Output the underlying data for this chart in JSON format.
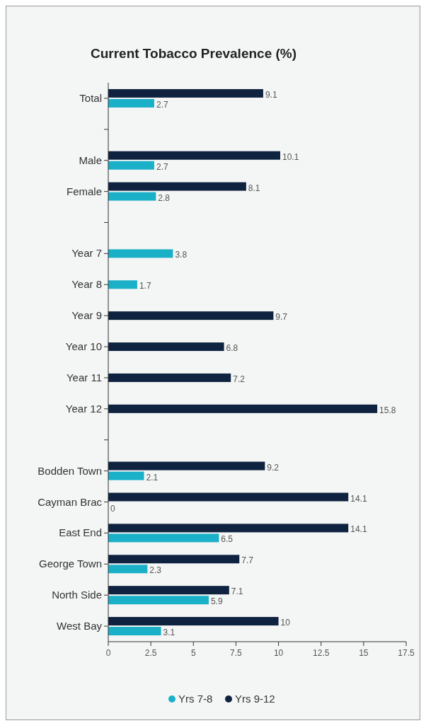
{
  "chart_data": {
    "type": "bar",
    "orientation": "horizontal",
    "title": "Current Tobacco Prevalence (%)",
    "categories": [
      "Total",
      null,
      "Male",
      "Female",
      null,
      "Year 7",
      "Year 8",
      "Year 9",
      "Year 10",
      "Year 11",
      "Year 12",
      null,
      "Bodden Town",
      "Cayman Brac",
      "East End",
      "George Town",
      "North Side",
      "West Bay"
    ],
    "series": [
      {
        "name": "Yrs 7-8",
        "color": "#1ab0c8",
        "values": [
          2.7,
          null,
          2.7,
          2.8,
          null,
          3.8,
          1.7,
          null,
          null,
          null,
          null,
          null,
          2.1,
          0,
          6.5,
          2.3,
          5.9,
          3.1
        ]
      },
      {
        "name": "Yrs 9-12",
        "color": "#0f2340",
        "values": [
          9.1,
          null,
          10.1,
          8.1,
          null,
          null,
          null,
          9.7,
          6.8,
          7.2,
          15.8,
          null,
          9.2,
          14.1,
          14.1,
          7.7,
          7.1,
          10
        ]
      }
    ],
    "xlim": [
      0,
      17.5
    ],
    "xticks": [
      0,
      2.5,
      5,
      7.5,
      10,
      12.5,
      15,
      17.5
    ],
    "data_labels": true,
    "grid": false,
    "legend": "bottom"
  }
}
